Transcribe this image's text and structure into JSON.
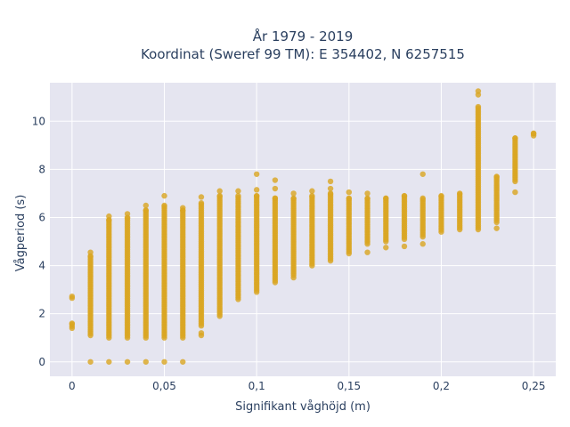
{
  "chart_data": {
    "type": "scatter",
    "title_line1": "År 1979 - 2019",
    "title_line2": "Koordinat (Sweref 99 TM): E 354402, N 6257515",
    "xlabel": "Signifikant våghöjd (m)",
    "ylabel": "Vågperiod (s)",
    "xlim": [
      -0.012,
      0.262
    ],
    "ylim": [
      -0.6,
      11.6
    ],
    "x_ticks": [
      {
        "value": 0,
        "label": "0"
      },
      {
        "value": 0.05,
        "label": "0,05"
      },
      {
        "value": 0.1,
        "label": "0,1"
      },
      {
        "value": 0.15,
        "label": "0,15"
      },
      {
        "value": 0.2,
        "label": "0,2"
      },
      {
        "value": 0.25,
        "label": "0,25"
      }
    ],
    "y_ticks": [
      {
        "value": 0,
        "label": "0"
      },
      {
        "value": 2,
        "label": "2"
      },
      {
        "value": 4,
        "label": "4"
      },
      {
        "value": 6,
        "label": "6"
      },
      {
        "value": 8,
        "label": "8"
      },
      {
        "value": 10,
        "label": "10"
      }
    ],
    "grid": true,
    "marker_color": "#DAA520",
    "plot_bgcolor": "#E5E5F0",
    "columns": [
      {
        "x": 0.0,
        "ymin": 1.4,
        "ymax": 1.6,
        "outliers": [
          2.65,
          2.72
        ]
      },
      {
        "x": 0.01,
        "ymin": 1.1,
        "ymax": 4.4,
        "outliers": [
          0,
          4.55
        ]
      },
      {
        "x": 0.02,
        "ymin": 1.0,
        "ymax": 5.9,
        "outliers": [
          0,
          6.05
        ]
      },
      {
        "x": 0.03,
        "ymin": 1.0,
        "ymax": 6.0,
        "outliers": [
          0,
          6.15
        ]
      },
      {
        "x": 0.04,
        "ymin": 1.0,
        "ymax": 6.3,
        "outliers": [
          0,
          6.5
        ]
      },
      {
        "x": 0.05,
        "ymin": 1.0,
        "ymax": 6.5,
        "outliers": [
          0,
          6.9
        ]
      },
      {
        "x": 0.06,
        "ymin": 1.0,
        "ymax": 6.3,
        "outliers": [
          0,
          6.4
        ]
      },
      {
        "x": 0.07,
        "ymin": 1.5,
        "ymax": 6.6,
        "outliers": [
          1.1,
          1.2,
          6.85
        ]
      },
      {
        "x": 0.08,
        "ymin": 1.9,
        "ymax": 6.9,
        "outliers": [
          7.1
        ]
      },
      {
        "x": 0.09,
        "ymin": 2.6,
        "ymax": 6.9,
        "outliers": [
          7.1
        ]
      },
      {
        "x": 0.1,
        "ymin": 2.9,
        "ymax": 6.9,
        "outliers": [
          7.15,
          7.8
        ]
      },
      {
        "x": 0.11,
        "ymin": 3.3,
        "ymax": 6.8,
        "outliers": [
          7.2,
          7.55
        ]
      },
      {
        "x": 0.12,
        "ymin": 3.6,
        "ymax": 6.8,
        "outliers": [
          3.5,
          7.0
        ]
      },
      {
        "x": 0.13,
        "ymin": 4.0,
        "ymax": 6.9,
        "outliers": [
          7.1
        ]
      },
      {
        "x": 0.14,
        "ymin": 4.2,
        "ymax": 7.0,
        "outliers": [
          7.2,
          7.5
        ]
      },
      {
        "x": 0.15,
        "ymin": 4.5,
        "ymax": 6.8,
        "outliers": [
          7.05
        ]
      },
      {
        "x": 0.16,
        "ymin": 4.9,
        "ymax": 6.8,
        "outliers": [
          4.55,
          7.0
        ]
      },
      {
        "x": 0.17,
        "ymin": 5.0,
        "ymax": 6.8,
        "outliers": [
          4.75
        ]
      },
      {
        "x": 0.18,
        "ymin": 5.1,
        "ymax": 6.9,
        "outliers": [
          4.8
        ]
      },
      {
        "x": 0.19,
        "ymin": 5.2,
        "ymax": 6.8,
        "outliers": [
          4.9,
          7.8
        ]
      },
      {
        "x": 0.2,
        "ymin": 5.4,
        "ymax": 6.9,
        "outliers": []
      },
      {
        "x": 0.21,
        "ymin": 5.5,
        "ymax": 7.0,
        "outliers": []
      },
      {
        "x": 0.22,
        "ymin": 5.5,
        "ymax": 10.6,
        "outliers": [
          11.1,
          11.25
        ]
      },
      {
        "x": 0.23,
        "ymin": 5.8,
        "ymax": 7.7,
        "outliers": [
          5.55
        ]
      },
      {
        "x": 0.24,
        "ymin": 7.5,
        "ymax": 9.3,
        "outliers": [
          7.05
        ]
      },
      {
        "x": 0.25,
        "ymin": 9.4,
        "ymax": 9.5,
        "outliers": []
      }
    ]
  }
}
